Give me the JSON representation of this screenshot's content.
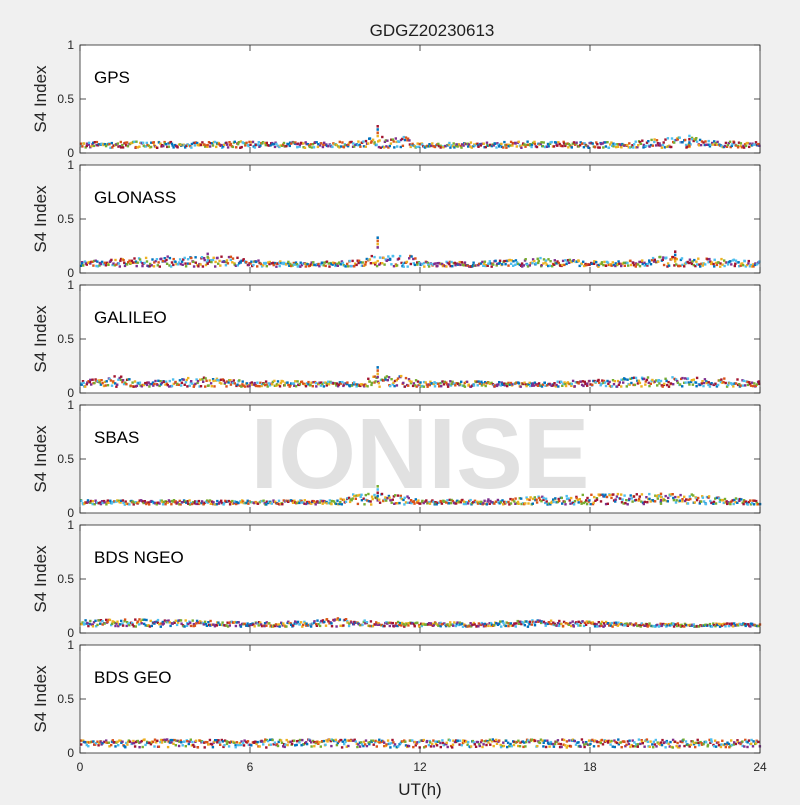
{
  "title": "GDGZ20230613",
  "watermark": "IONISE",
  "xlabel": "UT(h)",
  "ylabel": "S4 Index",
  "xlim": [
    0,
    24
  ],
  "ylim": [
    0,
    1
  ],
  "xticks": [
    "0",
    "6",
    "12",
    "18",
    "24"
  ],
  "yticks": [
    "0",
    "0.5",
    "1"
  ],
  "colors": [
    "#0072BD",
    "#D95319",
    "#EDB120",
    "#7E2F8E",
    "#77AC30",
    "#4DBEEE",
    "#A2142F"
  ],
  "chart_data": [
    {
      "type": "scatter",
      "panel_label": "GPS",
      "xlim": [
        0,
        24
      ],
      "ylim": [
        0,
        1
      ],
      "xlabel": "",
      "ylabel": "S4 Index",
      "baseline_s4": 0.07,
      "x": [
        0,
        2,
        4,
        6,
        8,
        10,
        10.5,
        12,
        14,
        16,
        18,
        20,
        21.5,
        22,
        24
      ],
      "s4_typical": [
        0.08,
        0.09,
        0.08,
        0.09,
        0.08,
        0.09,
        0.25,
        0.07,
        0.08,
        0.09,
        0.08,
        0.1,
        0.16,
        0.1,
        0.08
      ]
    },
    {
      "type": "scatter",
      "panel_label": "GLONASS",
      "xlim": [
        0,
        24
      ],
      "ylim": [
        0,
        1
      ],
      "xlabel": "",
      "ylabel": "S4 Index",
      "baseline_s4": 0.08,
      "x": [
        0,
        2,
        4,
        4.5,
        6,
        8,
        10,
        10.5,
        12,
        14,
        16,
        18,
        20,
        21,
        22,
        24
      ],
      "s4_typical": [
        0.09,
        0.12,
        0.15,
        0.18,
        0.1,
        0.08,
        0.1,
        0.33,
        0.09,
        0.08,
        0.13,
        0.09,
        0.1,
        0.2,
        0.12,
        0.09
      ]
    },
    {
      "type": "scatter",
      "panel_label": "GALILEO",
      "xlim": [
        0,
        24
      ],
      "ylim": [
        0,
        1
      ],
      "xlabel": "",
      "ylabel": "S4 Index",
      "baseline_s4": 0.08,
      "x": [
        0,
        1.5,
        2,
        4,
        6,
        8,
        10,
        10.5,
        12,
        14,
        16,
        18,
        20,
        22,
        24
      ],
      "s4_typical": [
        0.09,
        0.15,
        0.08,
        0.13,
        0.1,
        0.09,
        0.08,
        0.24,
        0.09,
        0.09,
        0.08,
        0.1,
        0.13,
        0.14,
        0.09
      ]
    },
    {
      "type": "scatter",
      "panel_label": "SBAS",
      "xlim": [
        0,
        24
      ],
      "ylim": [
        0,
        1
      ],
      "xlabel": "",
      "ylabel": "S4 Index",
      "baseline_s4": 0.1,
      "x": [
        0,
        3,
        6,
        9,
        10.5,
        12,
        15,
        17,
        20.5,
        24
      ],
      "s4_typical": [
        0.1,
        0.1,
        0.1,
        0.1,
        0.25,
        0.1,
        0.11,
        0.15,
        0.18,
        0.1
      ]
    },
    {
      "type": "scatter",
      "panel_label": "BDS NGEO",
      "xlim": [
        0,
        24
      ],
      "ylim": [
        0,
        1
      ],
      "xlabel": "",
      "ylabel": "S4 Index",
      "baseline_s4": 0.08,
      "x": [
        0,
        2,
        4,
        6,
        8,
        9,
        10,
        12,
        14,
        16,
        18,
        20,
        22,
        24
      ],
      "s4_typical": [
        0.1,
        0.11,
        0.1,
        0.08,
        0.09,
        0.12,
        0.1,
        0.08,
        0.08,
        0.1,
        0.09,
        0.07,
        0.07,
        0.07
      ]
    },
    {
      "type": "scatter",
      "panel_label": "BDS GEO",
      "xlim": [
        0,
        24
      ],
      "ylim": [
        0,
        1
      ],
      "xlabel": "UT(h)",
      "ylabel": "S4 Index",
      "baseline_s4": 0.09,
      "x": [
        0,
        6,
        12,
        18,
        24
      ],
      "s4_typical": [
        0.1,
        0.1,
        0.1,
        0.1,
        0.1
      ],
      "series_levels": [
        0.06,
        0.08,
        0.1,
        0.11,
        0.12
      ]
    }
  ]
}
